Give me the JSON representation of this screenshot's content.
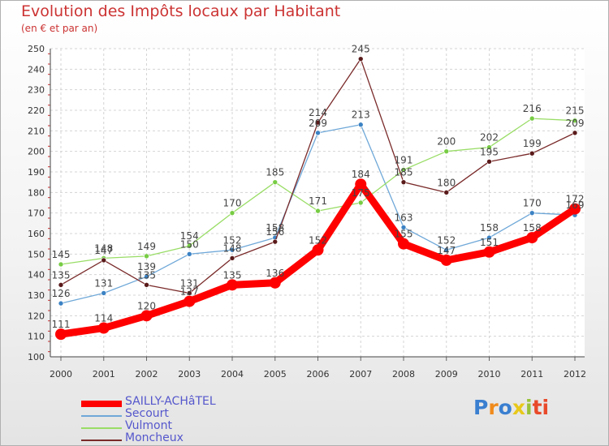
{
  "header": {
    "title": "Evolution des Impôts locaux par Habitant",
    "subtitle": "(en € et par an)"
  },
  "chart_data": {
    "type": "line",
    "title": "Evolution des Impôts locaux par Habitant",
    "subtitle": "(en € et par an)",
    "xlabel": "",
    "ylabel": "",
    "ylim": [
      100,
      250
    ],
    "ytick_step": 10,
    "grid": true,
    "legend_position": "bottom-left",
    "categories": [
      "2000",
      "2001",
      "2002",
      "2003",
      "2004",
      "2005",
      "2006",
      "2007",
      "2008",
      "2009",
      "2010",
      "2011",
      "2012"
    ],
    "series": [
      {
        "name": "SAILLY-ACHâTEL",
        "color": "#ff0000",
        "marker": "#ff0000",
        "width": 9,
        "values": [
          111,
          114,
          120,
          127,
          135,
          136,
          152,
          184,
          155,
          147,
          151,
          158,
          172
        ]
      },
      {
        "name": "Secourt",
        "color": "#6fa8d8",
        "marker": "#3b82c4",
        "width": 1.3,
        "values": [
          126,
          131,
          139,
          150,
          152,
          158,
          209,
          213,
          163,
          152,
          158,
          170,
          169
        ]
      },
      {
        "name": "Vulmont",
        "color": "#99dd66",
        "marker": "#77cc44",
        "width": 1.3,
        "values": [
          145,
          148,
          149,
          154,
          170,
          185,
          171,
          175,
          191,
          200,
          202,
          216,
          215
        ]
      },
      {
        "name": "Moncheux",
        "color": "#7a2a2a",
        "marker": "#5a1a1a",
        "width": 1.3,
        "values": [
          135,
          147,
          135,
          131,
          148,
          156,
          214,
          245,
          185,
          180,
          195,
          199,
          209
        ]
      }
    ]
  },
  "logo": {
    "text": "Proxiti",
    "colors": [
      "#3a7fd0",
      "#f08a1c",
      "#3a7fd0",
      "#e8c81a",
      "#99c23a",
      "#e84a2a",
      "#e84a2a"
    ]
  }
}
